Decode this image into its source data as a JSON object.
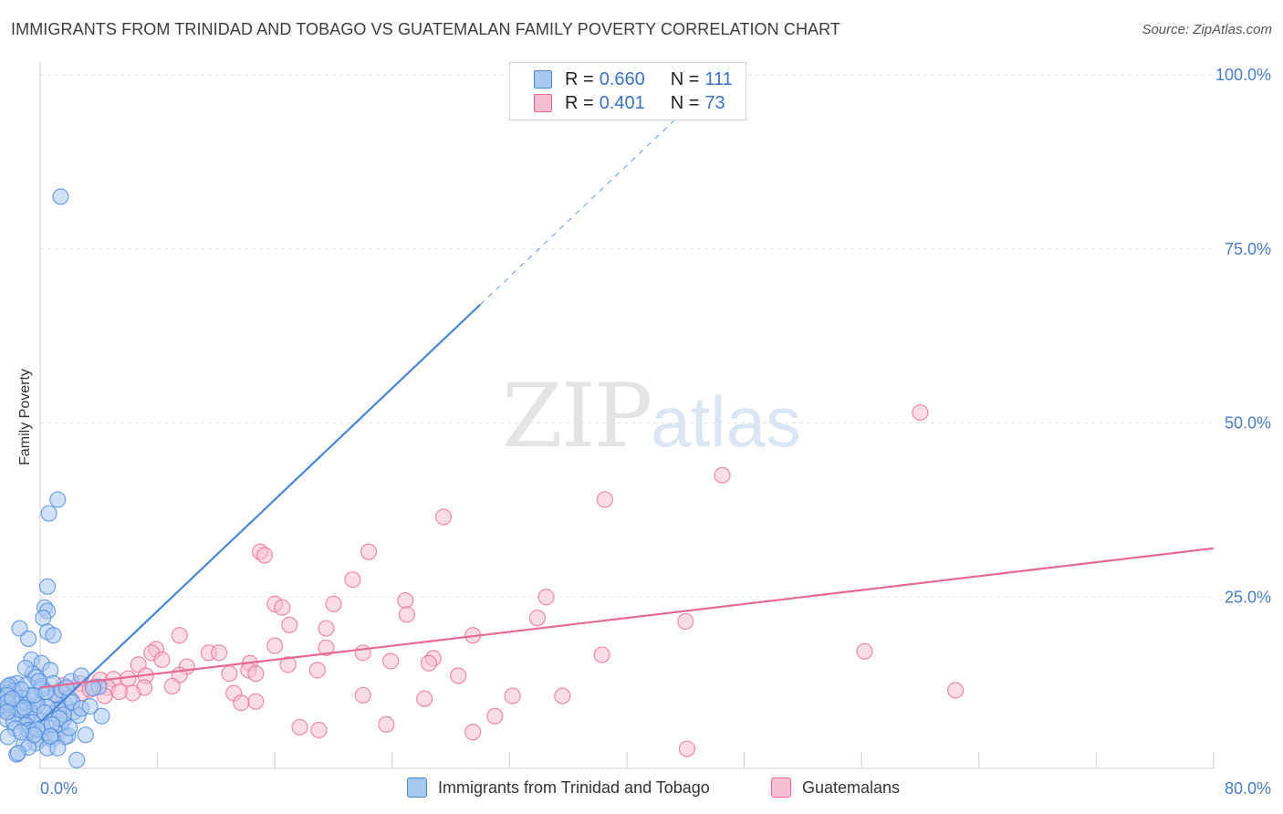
{
  "title": "IMMIGRANTS FROM TRINIDAD AND TOBAGO VS GUATEMALAN FAMILY POVERTY CORRELATION CHART",
  "source": "Source: ZipAtlas.com",
  "watermark": {
    "zip": "ZIP",
    "atlas": "atlas"
  },
  "legend": {
    "series1": {
      "r_label": "R =",
      "r_value": "0.660",
      "n_label": "N =",
      "n_value": "111",
      "color": "#a9c8f0"
    },
    "series2": {
      "r_label": "R =",
      "r_value": "0.401",
      "n_label": "N =",
      "n_value": "73",
      "color": "#f6bfd0"
    }
  },
  "bottom_legend": {
    "series1": "Immigrants from Trinidad and Tobago",
    "series2": "Guatemalans"
  },
  "chart_data": {
    "type": "scatter",
    "title": "IMMIGRANTS FROM TRINIDAD AND TOBAGO VS GUATEMALAN FAMILY POVERTY CORRELATION CHART",
    "xlabel": "",
    "ylabel": "Family Poverty",
    "xlim": [
      0,
      80
    ],
    "ylim": [
      0,
      100
    ],
    "x_tick_labels": [
      "0.0%",
      "80.0%"
    ],
    "y_tick_labels": [
      "100.0%",
      "75.0%",
      "50.0%",
      "25.0%"
    ],
    "y_ticks": [
      100,
      75,
      50,
      25
    ],
    "x_grid": [
      8,
      16,
      24,
      32,
      40,
      48,
      56,
      64,
      72,
      80
    ],
    "grid": true,
    "series": [
      {
        "name": "Immigrants from Trinidad and Tobago",
        "color": "#4a86d8",
        "fill": "#a9c8f0",
        "trend": {
          "x0": 0,
          "y0": 7,
          "x1": 30,
          "y1": 67,
          "dash_to_x": 43.5,
          "dash_to_y": 94
        },
        "points": [
          [
            1.4,
            82.5
          ],
          [
            1.2,
            39
          ],
          [
            0.6,
            37
          ],
          [
            0.5,
            26.5
          ],
          [
            0.3,
            23.5
          ],
          [
            0.5,
            23
          ],
          [
            0.2,
            22
          ],
          [
            -1.4,
            20.5
          ],
          [
            -0.8,
            19
          ],
          [
            0.5,
            20
          ],
          [
            0.9,
            19.5
          ],
          [
            -0.6,
            16
          ],
          [
            0.1,
            15.5
          ],
          [
            -0.5,
            14
          ],
          [
            -1.0,
            14.8
          ],
          [
            -0.3,
            13.5
          ],
          [
            0.7,
            14.5
          ],
          [
            -1.6,
            12.6
          ],
          [
            -2.0,
            12.4
          ],
          [
            -2.3,
            11.8
          ],
          [
            -1.8,
            11.5
          ],
          [
            -0.9,
            12.4
          ],
          [
            0.1,
            12.2
          ],
          [
            -2.7,
            11.2
          ],
          [
            -2.5,
            10.6
          ],
          [
            -1.7,
            10.2
          ],
          [
            -2.4,
            10.0
          ],
          [
            -2.1,
            9.6
          ],
          [
            -1.2,
            10.5
          ],
          [
            -1.5,
            9.8
          ],
          [
            -0.6,
            10.1
          ],
          [
            0.6,
            10.4
          ],
          [
            -0.9,
            9.5
          ],
          [
            -2.5,
            9.0
          ],
          [
            -2.9,
            9.1
          ],
          [
            -1.0,
            8.8
          ],
          [
            -1.6,
            8.1
          ],
          [
            -2.0,
            8.6
          ],
          [
            -0.6,
            8.4
          ],
          [
            -0.9,
            7.9
          ],
          [
            -1.2,
            7.6
          ],
          [
            -2.3,
            7.4
          ],
          [
            -1.8,
            7.0
          ],
          [
            -0.3,
            7.8
          ],
          [
            0.1,
            7.2
          ],
          [
            -0.5,
            7.0
          ],
          [
            -1.0,
            6.6
          ],
          [
            -0.8,
            5.9
          ],
          [
            -0.5,
            5.7
          ],
          [
            0.4,
            5.5
          ],
          [
            0.2,
            6.3
          ],
          [
            1.1,
            5.4
          ],
          [
            1.4,
            6.7
          ],
          [
            1.6,
            7.4
          ],
          [
            0.9,
            8.2
          ],
          [
            1.2,
            8.8
          ],
          [
            1.7,
            9.6
          ],
          [
            0.5,
            9.2
          ],
          [
            -0.2,
            9.5
          ],
          [
            -0.7,
            10.9
          ],
          [
            -1.3,
            11.7
          ],
          [
            -2.2,
            12.2
          ],
          [
            -2.6,
            10.9
          ],
          [
            0.9,
            12.6
          ],
          [
            1.1,
            11.0
          ],
          [
            1.5,
            11.6
          ],
          [
            2.1,
            12.9
          ],
          [
            2.0,
            10.5
          ],
          [
            2.3,
            8.5
          ],
          [
            2.6,
            8.0
          ],
          [
            3.1,
            5.2
          ],
          [
            1.9,
            5.1
          ],
          [
            1.7,
            4.9
          ],
          [
            0.8,
            4.6
          ],
          [
            0.0,
            4.6
          ],
          [
            -0.3,
            4.0
          ],
          [
            -1.1,
            3.9
          ],
          [
            -0.8,
            3.4
          ],
          [
            0.5,
            3.3
          ],
          [
            1.2,
            3.3
          ],
          [
            2.5,
            1.6
          ],
          [
            -1.6,
            2.4
          ],
          [
            -1.5,
            2.6
          ],
          [
            1.6,
            8.1
          ],
          [
            2.2,
            9.9
          ],
          [
            2.8,
            9.0
          ],
          [
            4.2,
            7.9
          ],
          [
            3.4,
            9.3
          ],
          [
            4.0,
            12.1
          ],
          [
            0.1,
            11.8
          ],
          [
            -1.7,
            6.1
          ],
          [
            -2.2,
            4.9
          ],
          [
            -0.2,
            6.0
          ],
          [
            1.3,
            7.6
          ],
          [
            -1.4,
            8.8
          ],
          [
            -2.8,
            9.9
          ],
          [
            -0.4,
            10.9
          ],
          [
            0.3,
            8.4
          ],
          [
            0.8,
            6.7
          ],
          [
            -1.1,
            9.1
          ],
          [
            -1.9,
            10.4
          ],
          [
            -2.7,
            8.5
          ],
          [
            0.4,
            11.4
          ],
          [
            -0.1,
            12.9
          ],
          [
            1.8,
            12.0
          ],
          [
            2.8,
            13.7
          ],
          [
            -0.4,
            5.2
          ],
          [
            0.7,
            5.0
          ],
          [
            -1.3,
            5.6
          ],
          [
            2.0,
            6.2
          ],
          [
            3.6,
            11.9
          ]
        ]
      },
      {
        "name": "Guatemalans",
        "color": "#e86893",
        "fill": "#f6bfd0",
        "trend": {
          "x0": 0,
          "y0": 12,
          "x1": 80,
          "y1": 32
        },
        "points": [
          [
            60,
            51.5
          ],
          [
            46.5,
            42.5
          ],
          [
            38.5,
            39
          ],
          [
            27.5,
            36.5
          ],
          [
            15,
            31.5
          ],
          [
            15.3,
            31
          ],
          [
            22.4,
            31.5
          ],
          [
            21.3,
            27.5
          ],
          [
            34.5,
            25
          ],
          [
            24.9,
            24.5
          ],
          [
            16,
            24
          ],
          [
            16.5,
            23.5
          ],
          [
            20,
            24
          ],
          [
            25,
            22.5
          ],
          [
            33.9,
            22
          ],
          [
            17,
            21
          ],
          [
            19.5,
            20.5
          ],
          [
            44,
            21.5
          ],
          [
            29.5,
            19.5
          ],
          [
            9.5,
            19.5
          ],
          [
            16,
            18
          ],
          [
            7.9,
            17.5
          ],
          [
            7.6,
            17
          ],
          [
            11.5,
            17
          ],
          [
            12.2,
            17
          ],
          [
            19.5,
            17.7
          ],
          [
            22,
            17
          ],
          [
            26.8,
            16.2
          ],
          [
            8.3,
            16.0
          ],
          [
            23.9,
            15.8
          ],
          [
            38.3,
            16.7
          ],
          [
            56.2,
            17.2
          ],
          [
            6.7,
            15.3
          ],
          [
            14.3,
            15.5
          ],
          [
            10.0,
            15.0
          ],
          [
            16.9,
            15.3
          ],
          [
            26.5,
            15.5
          ],
          [
            14.2,
            14.5
          ],
          [
            18.9,
            14.5
          ],
          [
            12.9,
            14.0
          ],
          [
            14.7,
            14.0
          ],
          [
            9.5,
            13.8
          ],
          [
            28.5,
            13.7
          ],
          [
            6.0,
            13.3
          ],
          [
            7.2,
            13.7
          ],
          [
            4.1,
            13.1
          ],
          [
            5.0,
            13.2
          ],
          [
            2.7,
            12.6
          ],
          [
            3.7,
            12.1
          ],
          [
            7.1,
            12.0
          ],
          [
            9.0,
            12.2
          ],
          [
            4.6,
            12.0
          ],
          [
            6.3,
            11.2
          ],
          [
            4.4,
            10.8
          ],
          [
            13.2,
            11.2
          ],
          [
            14.7,
            10.0
          ],
          [
            22.0,
            10.9
          ],
          [
            26.2,
            10.4
          ],
          [
            32.2,
            10.8
          ],
          [
            35.6,
            10.8
          ],
          [
            62.4,
            11.6
          ],
          [
            13.7,
            9.8
          ],
          [
            17.7,
            6.3
          ],
          [
            23.6,
            6.7
          ],
          [
            31.0,
            7.9
          ],
          [
            19.0,
            5.9
          ],
          [
            29.5,
            5.6
          ],
          [
            44.1,
            3.2
          ],
          [
            2.8,
            11.2
          ],
          [
            3.4,
            11.7
          ],
          [
            1.6,
            12.3
          ],
          [
            5.4,
            11.4
          ],
          [
            1.3,
            10.1
          ]
        ]
      }
    ]
  }
}
